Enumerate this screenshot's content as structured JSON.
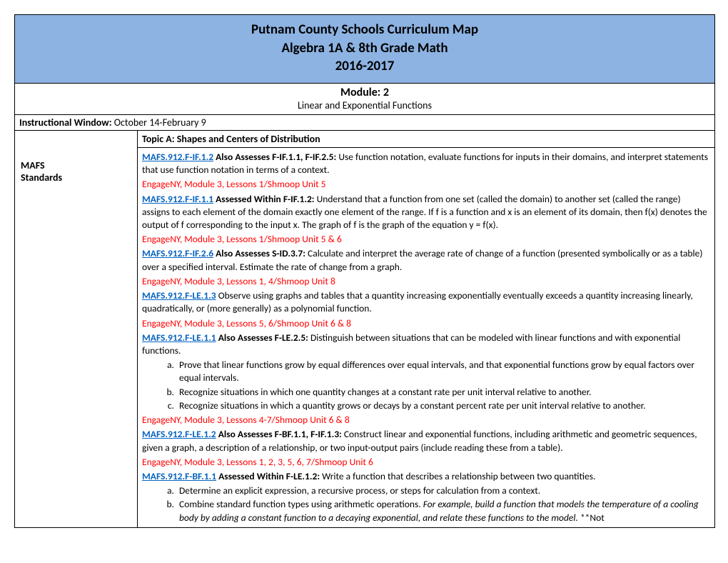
{
  "header": {
    "line1": "Putnam County Schools Curriculum Map",
    "line2": "Algebra 1A & 8th Grade Math",
    "line3": "2016-2017"
  },
  "module": {
    "title": "Module: 2",
    "subtitle": "Linear and Exponential Functions"
  },
  "window": {
    "label": "Instructional Window: ",
    "value": "October 14-February 9"
  },
  "left": {
    "mafs": "MAFS",
    "standards": "Standards"
  },
  "topic": "Topic A:  Shapes and Centers of Distribution",
  "s1": {
    "link": "MAFS.912.F-IF.1.2",
    "bold": " Also Assesses F-IF.1.1, F-IF.2.5: ",
    "text": "Use function notation, evaluate functions for inputs in their domains, and interpret statements that use function notation in terms of a context.",
    "res": "EngageNY, Module 3, Lessons 1/Shmoop Unit 5"
  },
  "s2": {
    "link": "MAFS.912.F-IF.1.1",
    "bold": " Assessed Within F-IF.1.2: ",
    "text": "Understand that a function from one set (called the domain) to another set (called the range) assigns to each element of the domain exactly one element of the range. If f is a function and x is an element of its domain, then f(x) denotes the output of f corresponding to the input x. The graph of f is the graph of the equation y = f(x).",
    "res": "EngageNY, Module 3, Lessons 1/Shmoop Unit 5 & 6"
  },
  "s3": {
    "link": "MAFS.912.F-IF.2.6",
    "bold": " Also Assesses S-ID.3.7: ",
    "text": "Calculate and interpret the average rate of change of a function (presented symbolically or as a table) over a specified interval. Estimate the rate of change from a graph.",
    "res": "EngageNY, Module 3, Lessons 1, 4/Shmoop Unit 8"
  },
  "s4": {
    "link": "MAFS.912.F-LE.1.3",
    "text": " Observe using graphs and tables that a quantity increasing exponentially eventually exceeds a quantity increasing linearly, quadratically, or (more generally) as a polynomial function.",
    "res": "EngageNY, Module 3, Lessons 5, 6/Shmoop Unit 6 & 8"
  },
  "s5": {
    "link": "MAFS.912.F-LE.1.1",
    "bold": " Also Assesses F-LE.2.5: ",
    "text": "Distinguish between situations that can be modeled with linear functions and with exponential functions.",
    "a": "Prove that linear functions grow by equal differences over equal intervals, and that exponential functions grow by equal factors over equal intervals.",
    "b": "Recognize situations in which one quantity changes at a constant rate per unit interval relative to another.",
    "c": "Recognize situations in which a quantity grows or decays by a constant percent rate per unit interval relative to another.",
    "res": "EngageNY, Module 3, Lessons 4-7/Shmoop Unit 6 & 8"
  },
  "s6": {
    "link": "MAFS.912.F-LE.1.2",
    "bold": " Also Assesses F-BF.1.1, F-IF.1.3: ",
    "text": "Construct linear and exponential functions, including arithmetic and geometric sequences, given a graph, a description of a relationship, or two input-output pairs (include reading these from a table).",
    "res": "EngageNY, Module 3, Lessons 1, 2, 3, 5, 6, 7/Shmoop Unit 6"
  },
  "s7": {
    "link": "MAFS.912.F-BF.1.1",
    "bold": " Assessed Within F-LE.1.2: ",
    "text": "Write a function that describes a relationship between two quantities.",
    "a": "Determine an explicit expression, a recursive process, or steps for calculation from a context.",
    "b_pre": "Combine standard function types using arithmetic operations.  ",
    "b_it": "For example, build a function that models the temperature of a cooling body by adding a constant function to a decaying exponential, and relate these functions to the model.",
    "b_post": " **Not"
  }
}
